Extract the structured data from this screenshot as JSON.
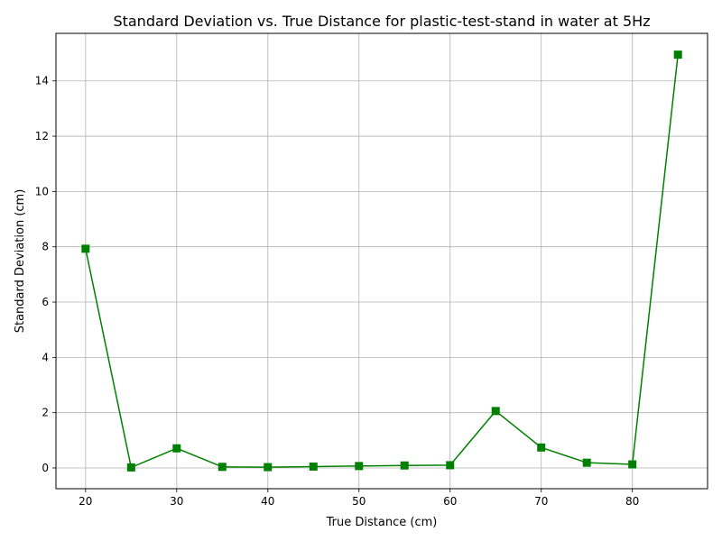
{
  "chart_data": {
    "type": "line",
    "title": "Standard Deviation vs. True Distance for plastic-test-stand in water at 5Hz",
    "xlabel": "True Distance (cm)",
    "ylabel": "Standard Deviation (cm)",
    "xlim": [
      16.75,
      88.25
    ],
    "ylim": [
      -0.75,
      15.72
    ],
    "xticks": [
      20,
      30,
      40,
      50,
      60,
      70,
      80
    ],
    "yticks": [
      0,
      2,
      4,
      6,
      8,
      10,
      12,
      14
    ],
    "grid": true,
    "series": [
      {
        "color": "#008000",
        "marker": "square",
        "x": [
          20,
          25,
          30,
          35,
          40,
          45,
          50,
          55,
          60,
          65,
          70,
          75,
          80,
          85
        ],
        "y": [
          7.93,
          0.02,
          0.71,
          0.04,
          0.03,
          0.05,
          0.07,
          0.09,
          0.1,
          2.06,
          0.74,
          0.19,
          0.13,
          14.95
        ]
      }
    ]
  }
}
